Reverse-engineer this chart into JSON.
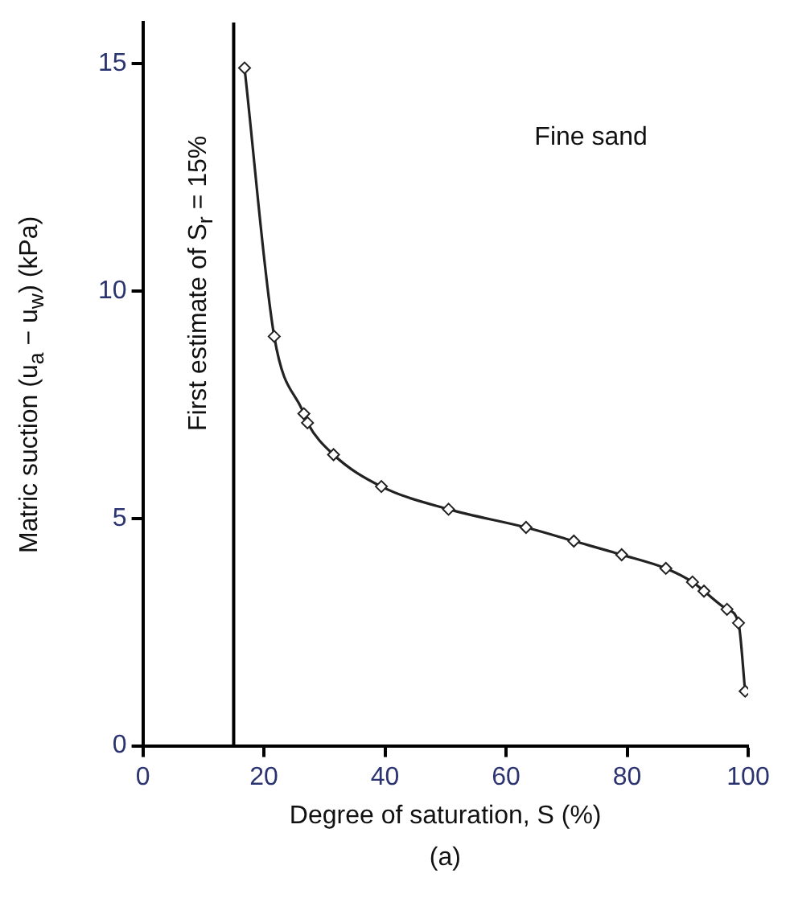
{
  "chart_data": {
    "type": "line",
    "xlabel": "Degree of saturation, S (%)",
    "ylabel": "Matric suction (u$_{a}$ − u$_{w}$) (kPa)",
    "annotations": [
      "Fine sand",
      "(a)"
    ],
    "x": [
      16.8,
      21.7,
      26.6,
      27.2,
      31.5,
      39.4,
      50.5,
      63.3,
      71.2,
      79.1,
      86.4,
      90.8,
      92.7,
      96.5,
      98.4,
      99.5
    ],
    "series": [
      {
        "color": "#222222",
        "values": [
          14.9,
          9.0,
          7.3,
          7.1,
          6.4,
          5.7,
          5.2,
          4.8,
          4.5,
          4.2,
          3.9,
          3.6,
          3.4,
          3.0,
          2.7,
          1.2
        ]
      }
    ],
    "xlim": [
      0,
      100
    ],
    "xticks": [
      0,
      20,
      40,
      60,
      80,
      100
    ],
    "ylim": [
      0,
      15.9
    ],
    "yticks": [
      0,
      5,
      10,
      15
    ],
    "ref_lines": [
      {
        "axis": "x",
        "value": 15,
        "label": "First estimate of S$_{r}$ = 15%",
        "color": "#000000"
      }
    ],
    "grid": false,
    "legend": false,
    "marker": "diamond",
    "line_style": "solid"
  }
}
